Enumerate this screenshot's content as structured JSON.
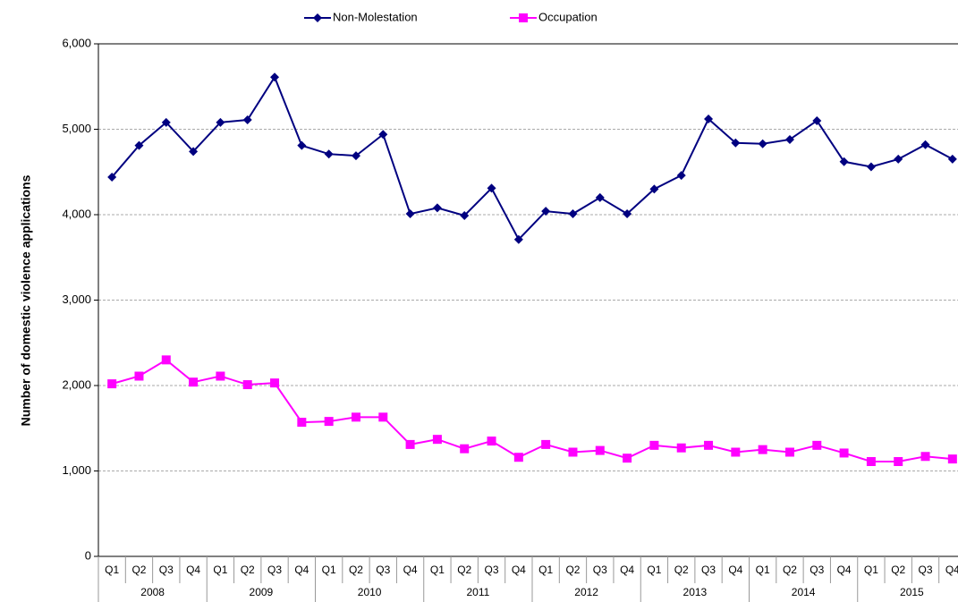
{
  "chart_data": {
    "type": "line",
    "y_label": "Number of domestic violence applications",
    "categories": [
      "Q1",
      "Q2",
      "Q3",
      "Q4",
      "Q1",
      "Q2",
      "Q3",
      "Q4",
      "Q1",
      "Q2",
      "Q3",
      "Q4",
      "Q1",
      "Q2",
      "Q3",
      "Q4",
      "Q1",
      "Q2",
      "Q3",
      "Q4",
      "Q1",
      "Q2",
      "Q3",
      "Q4",
      "Q1",
      "Q2",
      "Q3",
      "Q4",
      "Q1",
      "Q2",
      "Q3",
      "Q4"
    ],
    "category_groups": [
      "2008",
      "2009",
      "2010",
      "2011",
      "2012",
      "2013",
      "2014",
      "2015"
    ],
    "series": [
      {
        "name": "Non-Molestation",
        "color": "#000080",
        "marker": "diamond",
        "values": [
          4440,
          4810,
          5080,
          4740,
          5080,
          5110,
          5610,
          4810,
          4710,
          4690,
          4940,
          4010,
          4080,
          3990,
          4310,
          3710,
          4040,
          4010,
          4200,
          4010,
          4300,
          4460,
          5120,
          4840,
          4830,
          4880,
          5100,
          4620,
          4560,
          4650,
          4820,
          4650
        ]
      },
      {
        "name": "Occupation",
        "color": "#ff00ff",
        "marker": "square",
        "values": [
          2020,
          2110,
          2300,
          2040,
          2110,
          2010,
          2030,
          1570,
          1580,
          1630,
          1630,
          1310,
          1370,
          1260,
          1350,
          1160,
          1310,
          1220,
          1240,
          1150,
          1300,
          1270,
          1300,
          1220,
          1250,
          1220,
          1300,
          1210,
          1110,
          1110,
          1170,
          1140
        ]
      }
    ],
    "ylim": [
      0,
      6000
    ],
    "yticks": [
      0,
      {
        "value": 1000,
        "label": "1,000"
      },
      {
        "value": 2000,
        "label": "2,000"
      },
      {
        "value": 3000,
        "label": "3,000"
      },
      {
        "value": 4000,
        "label": "4,000"
      },
      {
        "value": 5000,
        "label": "5,000"
      },
      {
        "value": 6000,
        "label": "6,000"
      }
    ],
    "grid": true,
    "legend": "top"
  }
}
